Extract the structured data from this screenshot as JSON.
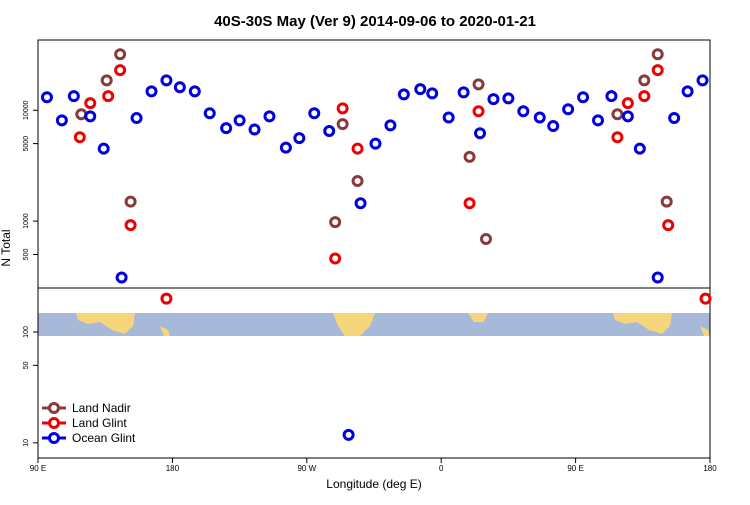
{
  "chart_data": {
    "type": "scatter",
    "title": "40S-30S May (Ver 9)   2014-09-06 to 2020-01-21",
    "x_label": "Longitude (deg E)",
    "y_label": "N Total",
    "log_y": true,
    "legend": "bottom-left",
    "xlim": [
      90,
      540
    ],
    "ylim": [
      7.3,
      43000
    ],
    "xticks": [
      {
        "value": 90,
        "label": "90 E"
      },
      {
        "value": 180,
        "label": "180"
      },
      {
        "value": 270,
        "label": "90 W"
      },
      {
        "value": 360,
        "label": "0"
      },
      {
        "value": 450,
        "label": "90 E"
      },
      {
        "value": 540,
        "label": "180"
      }
    ],
    "yticks": [
      10,
      50,
      100,
      500,
      1000,
      5000,
      10000
    ],
    "series": [
      {
        "name": "Land Nadir",
        "color": "#8b3a3a",
        "x": [
          119,
          136,
          145,
          152,
          289,
          294,
          304,
          379,
          385,
          390,
          478,
          496,
          505,
          511
        ],
        "values": [
          9200,
          18600,
          32000,
          1500,
          980,
          7500,
          2300,
          3800,
          17100,
          690,
          9200,
          18600,
          32000,
          1500
        ]
      },
      {
        "name": "Land Glint",
        "color": "#ee0000",
        "x": [
          118,
          125,
          137,
          145,
          152,
          176,
          289,
          294,
          304,
          379,
          385,
          485,
          478,
          496,
          505,
          512,
          537
        ],
        "values": [
          5700,
          11600,
          13400,
          23000,
          920,
          200,
          460,
          10400,
          4500,
          1450,
          9800,
          11600,
          5700,
          13400,
          23000,
          920,
          200
        ]
      },
      {
        "name": "Ocean Glint",
        "color": "#0000dd",
        "x": [
          96,
          106,
          114,
          125,
          134,
          146,
          156,
          166,
          176,
          185,
          195,
          205,
          216,
          225,
          235,
          245,
          256,
          265,
          275,
          285,
          298,
          306,
          316,
          326,
          335,
          346,
          354,
          365,
          375,
          386,
          395,
          405,
          415,
          426,
          435,
          445,
          455,
          465,
          474,
          485,
          493,
          505,
          516,
          525,
          535
        ],
        "values": [
          13100,
          8100,
          13400,
          8800,
          4500,
          310,
          8500,
          14800,
          18600,
          16100,
          14800,
          9400,
          6900,
          8100,
          6700,
          8800,
          4600,
          5600,
          9400,
          6500,
          11.8,
          1450,
          5000,
          7300,
          13900,
          15500,
          14200,
          8600,
          14500,
          6200,
          12600,
          12800,
          9800,
          8600,
          7200,
          10200,
          13100,
          8100,
          13400,
          8800,
          4500,
          310,
          8500,
          14800,
          18600
        ]
      }
    ]
  }
}
